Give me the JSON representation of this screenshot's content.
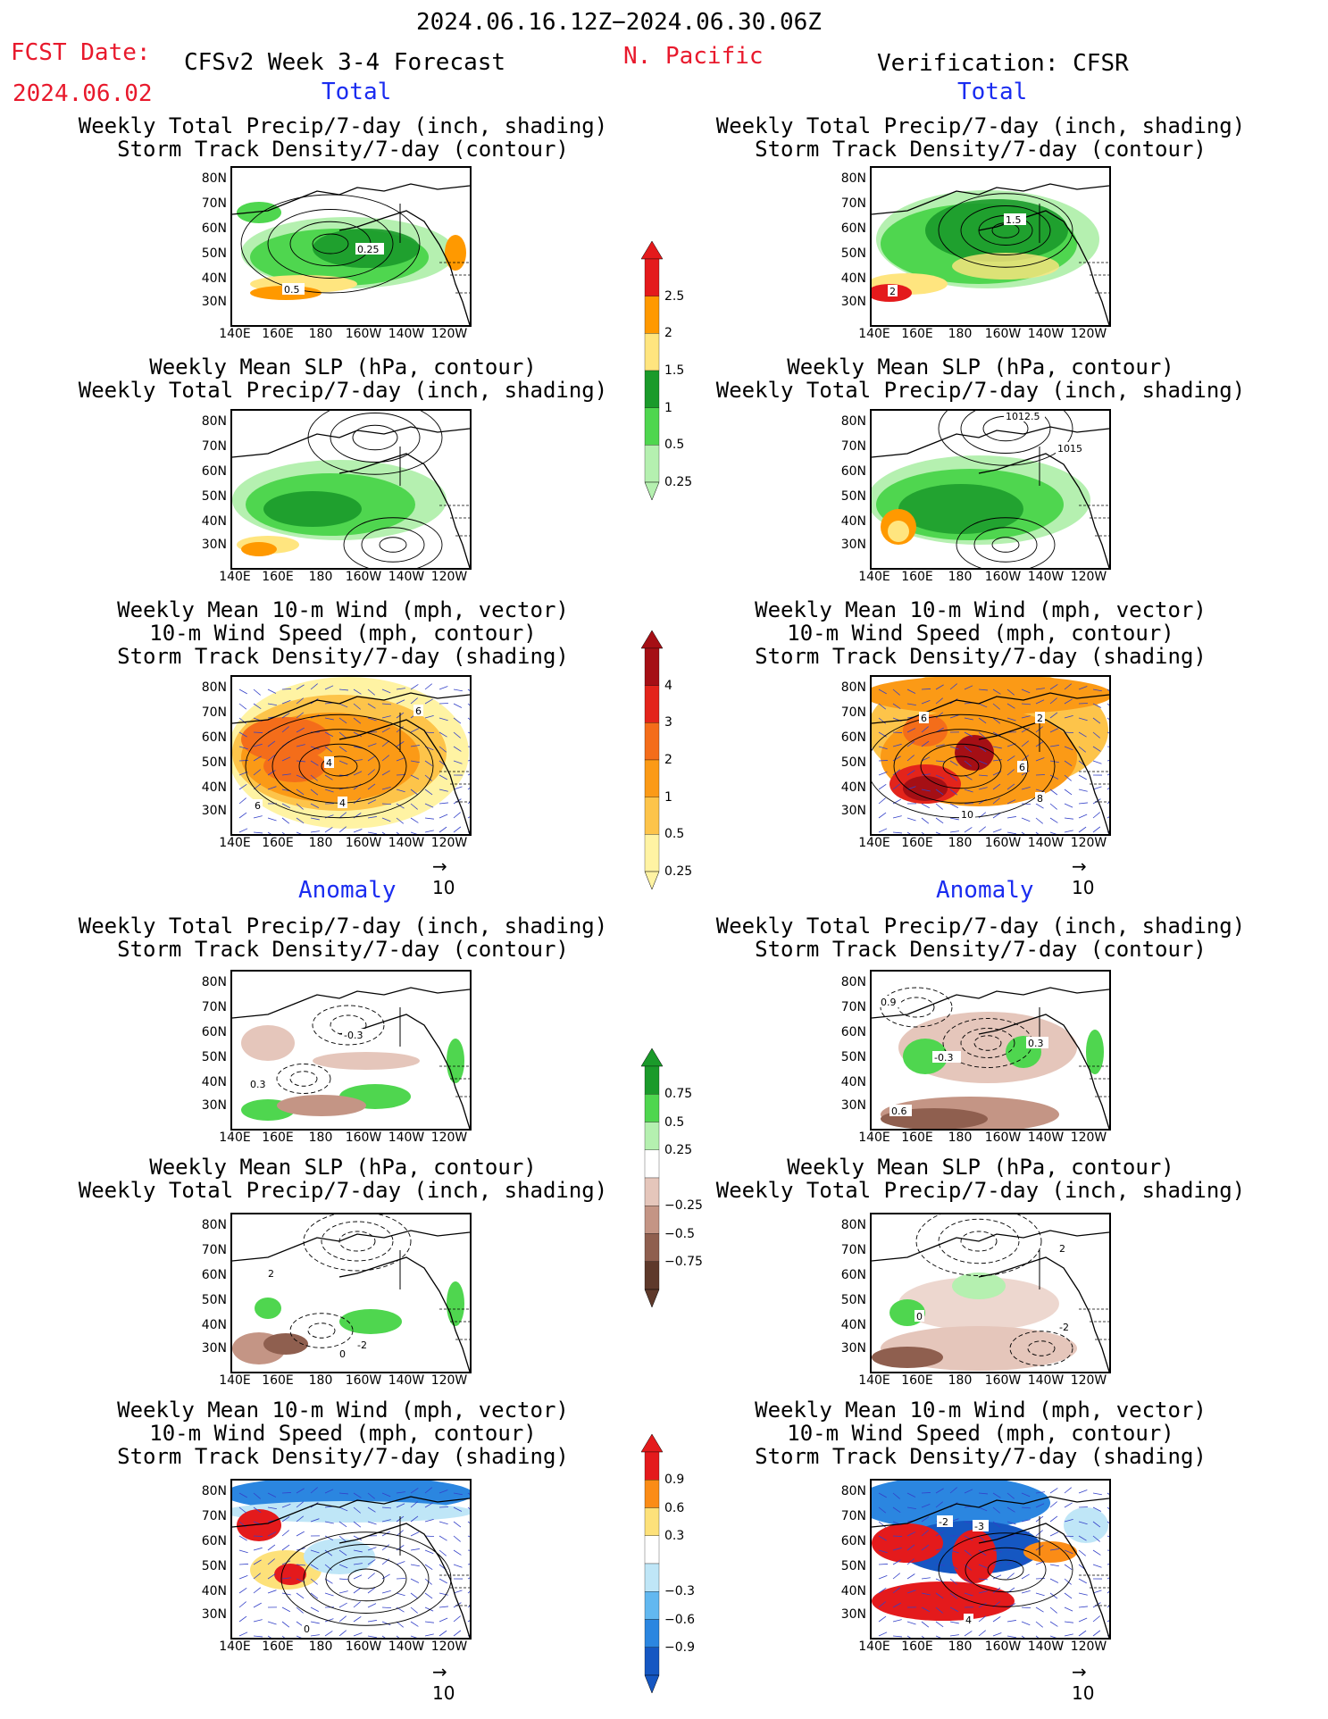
{
  "header": {
    "period": "2024.06.16.12Z−2024.06.30.06Z",
    "fcst_label": "FCST Date:",
    "fcst_date": "2024.06.02",
    "model": "CFSv2 Week 3-4 Forecast",
    "region": "N. Pacific",
    "verification": "Verification: CFSR"
  },
  "sections": {
    "total": "Total",
    "anomaly": "Anomaly"
  },
  "axes": {
    "lat": [
      "80N",
      "70N",
      "60N",
      "50N",
      "40N",
      "30N"
    ],
    "lon": [
      "140E",
      "160E",
      "180",
      "160W",
      "140W",
      "120W"
    ]
  },
  "panels": {
    "p1": [
      "Weekly Total Precip/7-day (inch, shading)",
      "Storm Track Density/7-day (contour)"
    ],
    "p2": [
      "Weekly Mean SLP (hPa, contour)",
      "Weekly Total Precip/7-day (inch, shading)"
    ],
    "p3": [
      "Weekly Mean 10-m Wind (mph, vector)",
      "10-m Wind Speed (mph, contour)",
      "Storm Track Density/7-day (shading)"
    ]
  },
  "map_labels": {
    "f1": [
      "0.25",
      "0.5"
    ],
    "v1": [
      "2",
      "1.5"
    ],
    "v2": [
      "1012.5",
      "1015"
    ],
    "f3": [
      "4",
      "6",
      "4",
      "6"
    ],
    "v3": [
      "6",
      "2",
      "6",
      "8",
      "10"
    ],
    "fa1": [
      "-0.3",
      "0.3"
    ],
    "va1": [
      "0.9",
      "-0.3",
      "0.3",
      "0.6"
    ],
    "fa2": [
      "2",
      "-2",
      "0"
    ],
    "va2": [
      "2",
      "0",
      "-2"
    ],
    "fa3": [
      "0"
    ],
    "va3": [
      "-2",
      "-3",
      "4"
    ]
  },
  "vector_ref": "10",
  "colorbars": {
    "precip": {
      "labels": [
        "2.5",
        "2",
        "1.5",
        "1",
        "0.5",
        "0.25"
      ],
      "colors": [
        "#e41a1c",
        "#ff9900",
        "#ffe57f",
        "#1a9a2a",
        "#4fd64f",
        "#b5f0b0"
      ]
    },
    "storm": {
      "labels": [
        "4",
        "3",
        "2",
        "1",
        "0.5",
        "0.25"
      ],
      "colors": [
        "#a50f15",
        "#e3241b",
        "#f46d1a",
        "#fb9a16",
        "#fdc44a",
        "#fff3a3"
      ]
    },
    "precip_anom": {
      "labels": [
        "0.75",
        "0.5",
        "0.25",
        "−0.25",
        "−0.5",
        "−0.75"
      ],
      "colors": [
        "#1a9a2a",
        "#4fd64f",
        "#b5f0b0",
        "#ffffff",
        "#e5c6bb",
        "#c49585",
        "#8f5f4f",
        "#5e392b"
      ]
    },
    "storm_anom": {
      "labels": [
        "0.9",
        "0.6",
        "0.3",
        "−0.3",
        "−0.6",
        "−0.9"
      ],
      "colors": [
        "#e41a1c",
        "#fb8c16",
        "#fde17a",
        "#ffffff",
        "#bfe6f7",
        "#62b8f0",
        "#2b86e0",
        "#1557c2"
      ]
    }
  }
}
